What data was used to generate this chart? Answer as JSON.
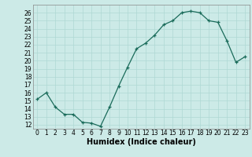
{
  "x": [
    0,
    1,
    2,
    3,
    4,
    5,
    6,
    7,
    8,
    9,
    10,
    11,
    12,
    13,
    14,
    15,
    16,
    17,
    18,
    19,
    20,
    21,
    22,
    23
  ],
  "y": [
    15.2,
    16.0,
    14.2,
    13.3,
    13.3,
    12.3,
    12.2,
    11.8,
    14.2,
    16.8,
    19.2,
    21.5,
    22.2,
    23.2,
    24.5,
    25.0,
    26.0,
    26.2,
    26.0,
    25.0,
    24.8,
    22.5,
    19.8,
    20.5
  ],
  "line_color": "#1a6b5a",
  "marker": "+",
  "marker_size": 3,
  "bg_color": "#cceae7",
  "grid_color": "#aed8d4",
  "xlabel": "Humidex (Indice chaleur)",
  "ylim": [
    11.5,
    27
  ],
  "xlim": [
    -0.5,
    23.5
  ],
  "yticks": [
    12,
    13,
    14,
    15,
    16,
    17,
    18,
    19,
    20,
    21,
    22,
    23,
    24,
    25,
    26
  ],
  "xticks": [
    0,
    1,
    2,
    3,
    4,
    5,
    6,
    7,
    8,
    9,
    10,
    11,
    12,
    13,
    14,
    15,
    16,
    17,
    18,
    19,
    20,
    21,
    22,
    23
  ],
  "tick_fontsize": 5.5,
  "xlabel_fontsize": 7
}
